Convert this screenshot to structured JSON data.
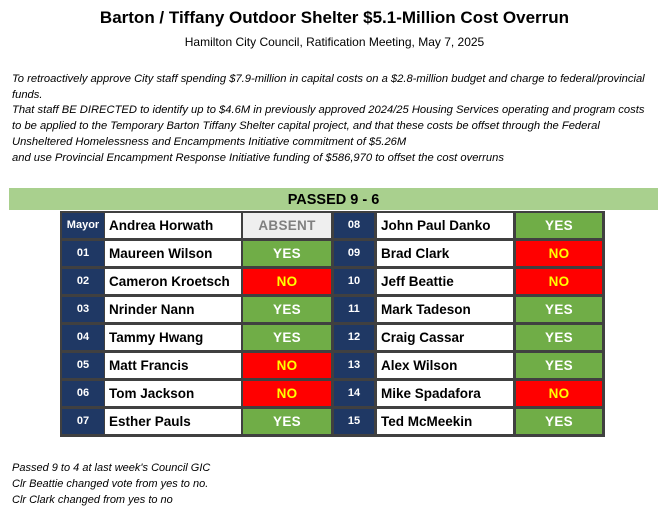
{
  "header": {
    "title": "Barton / Tiffany Outdoor Shelter $5.1-Million Cost Overrun",
    "subtitle": "Hamilton City Council, Ratification Meeting, May 7, 2025"
  },
  "motion": {
    "para1": "To retroactively approve City staff spending $7.9-million in capital costs on a $2.8-million budget and charge to federal/provincial funds.",
    "para2": "That staff BE DIRECTED to identify up to $4.6M in previously approved 2024/25 Housing Services operating and program costs to be applied to the Temporary Barton Tiffany Shelter capital project, and that these costs be offset through the Federal Unsheltered Homelessness and Encampments Initiative commitment of $5.26M",
    "para3": "and use Provincial Encampment Response Initiative funding of $586,970 to offset the cost overruns"
  },
  "result": "PASSED 9 - 6",
  "colors": {
    "result_bar": "#a9d08e",
    "ward_cell": "#1f3864",
    "yes": "#70ad47",
    "no": "#ff0000",
    "no_text": "#ffff00",
    "absent": "#efefef",
    "grid": "#404040"
  },
  "members": [
    {
      "ward": "Mayor",
      "name": "Andrea Horwath",
      "vote": "ABSENT",
      "status": "absent"
    },
    {
      "ward": "01",
      "name": "Maureen Wilson",
      "vote": "YES",
      "status": "yes"
    },
    {
      "ward": "02",
      "name": "Cameron Kroetsch",
      "vote": "NO",
      "status": "no"
    },
    {
      "ward": "03",
      "name": "Nrinder Nann",
      "vote": "YES",
      "status": "yes"
    },
    {
      "ward": "04",
      "name": "Tammy Hwang",
      "vote": "YES",
      "status": "yes"
    },
    {
      "ward": "05",
      "name": "Matt Francis",
      "vote": "NO",
      "status": "no"
    },
    {
      "ward": "06",
      "name": "Tom Jackson",
      "vote": "NO",
      "status": "no"
    },
    {
      "ward": "07",
      "name": "Esther Pauls",
      "vote": "YES",
      "status": "yes"
    },
    {
      "ward": "08",
      "name": "John Paul Danko",
      "vote": "YES",
      "status": "yes"
    },
    {
      "ward": "09",
      "name": "Brad Clark",
      "vote": "NO",
      "status": "no"
    },
    {
      "ward": "10",
      "name": "Jeff Beattie",
      "vote": "NO",
      "status": "no"
    },
    {
      "ward": "11",
      "name": "Mark Tadeson",
      "vote": "YES",
      "status": "yes"
    },
    {
      "ward": "12",
      "name": "Craig Cassar",
      "vote": "YES",
      "status": "yes"
    },
    {
      "ward": "13",
      "name": "Alex Wilson",
      "vote": "YES",
      "status": "yes"
    },
    {
      "ward": "14",
      "name": "Mike Spadafora",
      "vote": "NO",
      "status": "no"
    },
    {
      "ward": "15",
      "name": "Ted McMeekin",
      "vote": "YES",
      "status": "yes"
    }
  ],
  "notes": [
    "Passed 9 to 4 at last week's Council GIC",
    "Clr Beattie changed vote from yes to no.",
    "Clr Clark changed from yes to no"
  ]
}
